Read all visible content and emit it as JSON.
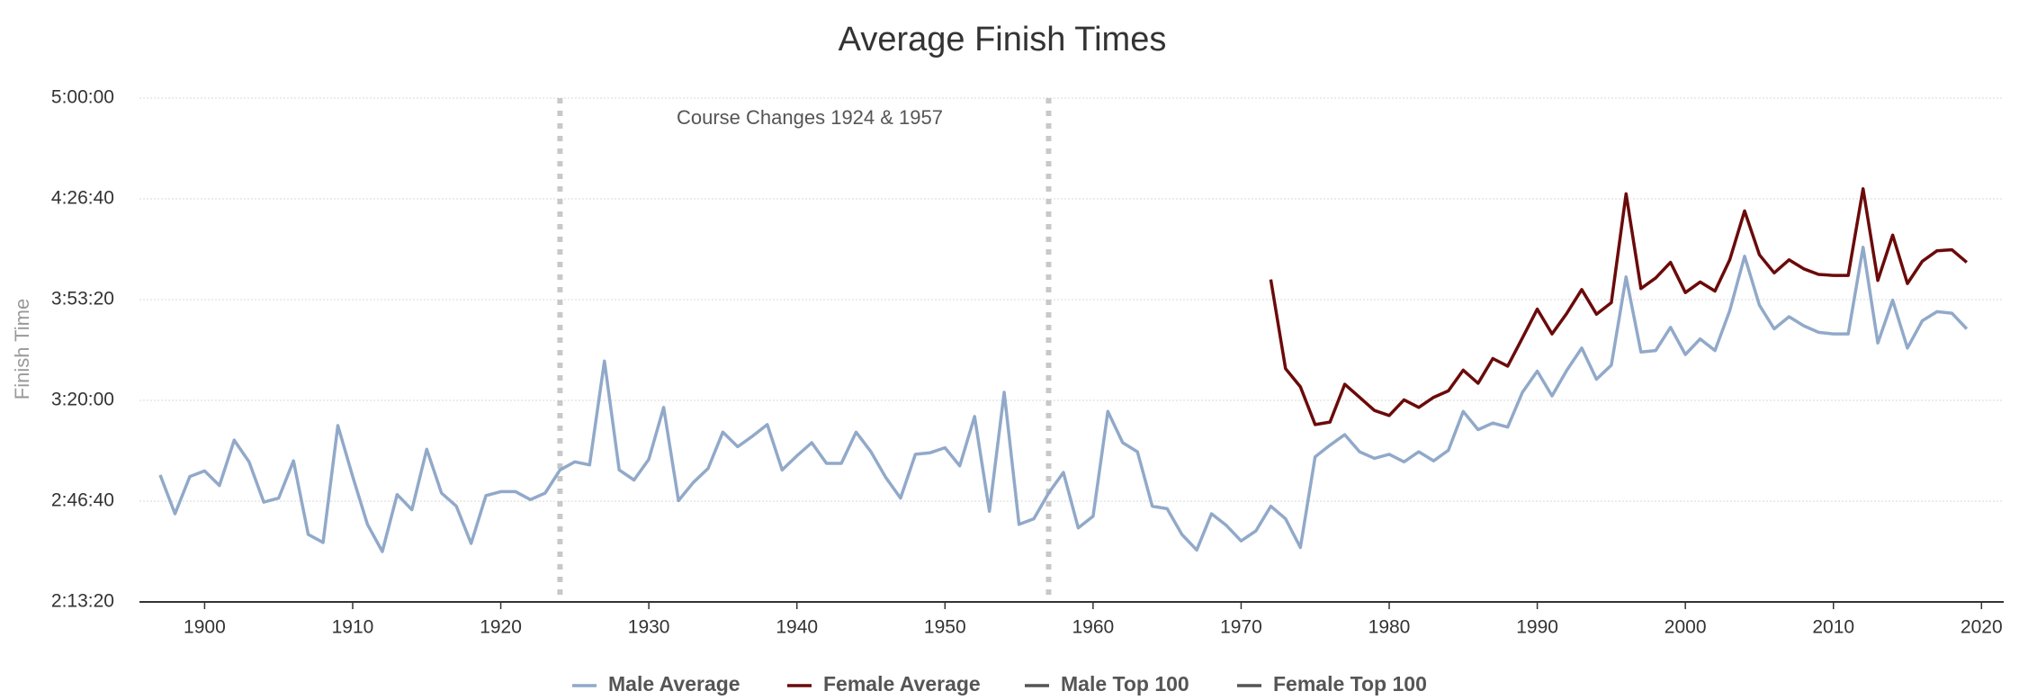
{
  "chart_data": {
    "type": "line",
    "title": "Average Finish Times",
    "y_label": "Finish Time",
    "annotation": "Course Changes 1924 & 1957",
    "plot_lines": [
      1924,
      1957
    ],
    "x": [
      1897,
      1898,
      1899,
      1900,
      1901,
      1902,
      1903,
      1904,
      1905,
      1906,
      1907,
      1908,
      1909,
      1910,
      1911,
      1912,
      1913,
      1914,
      1915,
      1916,
      1917,
      1918,
      1919,
      1920,
      1921,
      1922,
      1923,
      1924,
      1925,
      1926,
      1927,
      1928,
      1929,
      1930,
      1931,
      1932,
      1933,
      1934,
      1935,
      1936,
      1937,
      1938,
      1939,
      1940,
      1941,
      1942,
      1943,
      1944,
      1945,
      1946,
      1947,
      1948,
      1949,
      1950,
      1951,
      1952,
      1953,
      1954,
      1955,
      1956,
      1957,
      1958,
      1959,
      1960,
      1961,
      1962,
      1963,
      1964,
      1965,
      1966,
      1967,
      1968,
      1969,
      1970,
      1971,
      1972,
      1973,
      1974,
      1975,
      1976,
      1977,
      1978,
      1979,
      1980,
      1981,
      1982,
      1983,
      1984,
      1985,
      1986,
      1987,
      1988,
      1989,
      1990,
      1991,
      1992,
      1993,
      1994,
      1995,
      1996,
      1997,
      1998,
      1999,
      2000,
      2001,
      2002,
      2003,
      2004,
      2005,
      2006,
      2007,
      2008,
      2009,
      2010,
      2011,
      2012,
      2013,
      2014,
      2015,
      2016,
      2017,
      2018,
      2019
    ],
    "series": [
      {
        "name": "Male Average",
        "color": "#91a9c9",
        "values": [
          10520,
          9750,
          10490,
          10600,
          10310,
          11210,
          10780,
          9980,
          10060,
          10800,
          9340,
          9180,
          11500,
          10490,
          9540,
          9000,
          10130,
          9830,
          11030,
          10160,
          9900,
          9160,
          10110,
          10190,
          10190,
          10030,
          10160,
          10620,
          10780,
          10720,
          12780,
          10620,
          10420,
          10830,
          11860,
          10010,
          10370,
          10650,
          11370,
          11080,
          11290,
          11520,
          10620,
          10900,
          11160,
          10750,
          10750,
          11370,
          10980,
          10470,
          10060,
          10930,
          10960,
          11060,
          10700,
          11680,
          9800,
          12160,
          9540,
          9650,
          10160,
          10570,
          9470,
          9700,
          11780,
          11160,
          10980,
          9900,
          9850,
          9340,
          9030,
          9750,
          9520,
          9210,
          9410,
          9900,
          9650,
          9080,
          10880,
          11110,
          11320,
          10980,
          10850,
          10930,
          10780,
          10980,
          10800,
          11010,
          11780,
          11420,
          11550,
          11470,
          12160,
          12580,
          12090,
          12600,
          13040,
          12420,
          12700,
          14450,
          12960,
          12990,
          13450,
          12910,
          13220,
          12990,
          13780,
          14860,
          13890,
          13420,
          13660,
          13480,
          13350,
          13320,
          13320,
          15040,
          13140,
          13990,
          13040,
          13580,
          13760,
          13730,
          13420
        ]
      },
      {
        "name": "Female Average",
        "color": "#6b0a0a",
        "values": [
          null,
          null,
          null,
          null,
          null,
          null,
          null,
          null,
          null,
          null,
          null,
          null,
          null,
          null,
          null,
          null,
          null,
          null,
          null,
          null,
          null,
          null,
          null,
          null,
          null,
          null,
          null,
          null,
          null,
          null,
          null,
          null,
          null,
          null,
          null,
          null,
          null,
          null,
          null,
          null,
          null,
          null,
          null,
          null,
          null,
          null,
          null,
          null,
          null,
          null,
          null,
          null,
          null,
          null,
          null,
          null,
          null,
          null,
          null,
          null,
          null,
          null,
          null,
          null,
          null,
          null,
          null,
          null,
          null,
          null,
          null,
          null,
          null,
          null,
          null,
          14400,
          12630,
          12270,
          11520,
          11570,
          12320,
          12060,
          11800,
          11700,
          12010,
          11860,
          12060,
          12190,
          12600,
          12340,
          12830,
          12680,
          13240,
          13810,
          13320,
          13730,
          14200,
          13710,
          13940,
          16100,
          14220,
          14430,
          14740,
          14140,
          14350,
          14170,
          14790,
          15760,
          14890,
          14530,
          14790,
          14610,
          14500,
          14480,
          14480,
          16200,
          14380,
          15280,
          14320,
          14760,
          14970,
          14990,
          14740
        ]
      },
      {
        "name": "Male Top 100",
        "color": "#555555",
        "hidden": true
      },
      {
        "name": "Female Top 100",
        "color": "#555555",
        "hidden": true
      }
    ],
    "xlim": [
      1895.6,
      2021.5
    ],
    "xticks": [
      1900,
      1910,
      1920,
      1930,
      1940,
      1950,
      1960,
      1970,
      1980,
      1990,
      2000,
      2010,
      2020
    ],
    "ylim": [
      8000,
      18000
    ],
    "yticks": [
      {
        "value": 8000,
        "label": "2:13:20"
      },
      {
        "value": 10000,
        "label": "2:46:40"
      },
      {
        "value": 12000,
        "label": "3:20:00"
      },
      {
        "value": 14000,
        "label": "3:53:20"
      },
      {
        "value": 16000,
        "label": "4:26:40"
      },
      {
        "value": 18000,
        "label": "5:00:00"
      }
    ],
    "grid": true,
    "legend": "bottom"
  }
}
